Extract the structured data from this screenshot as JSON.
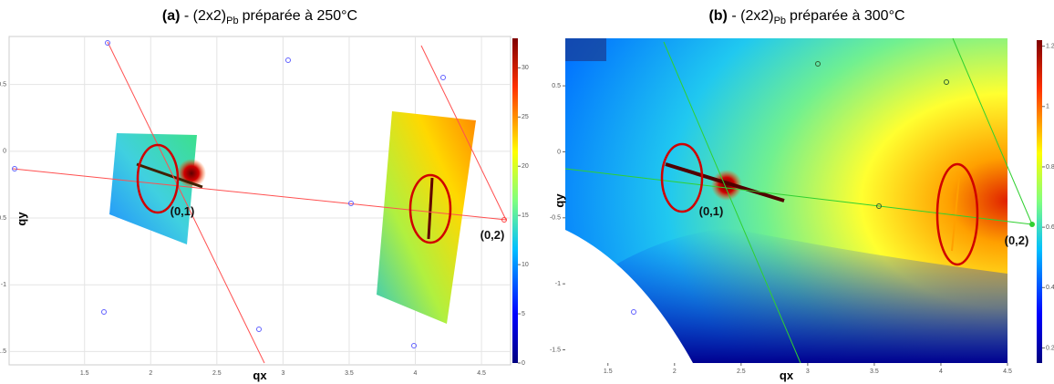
{
  "chart_data": [
    {
      "type": "heatmap",
      "panel_label": "(a)",
      "title": "- (2x2)",
      "title_sub": "Pb",
      "title_rest": "préparée à 250°C",
      "x_label": "qx",
      "y_label": "qy",
      "xlim": [
        0.93,
        4.72
      ],
      "xticks": [
        1.5,
        2,
        2.5,
        3,
        3.5,
        4,
        4.5
      ],
      "ylim": [
        -1.6,
        0.86
      ],
      "yticks": [
        0.5,
        0,
        -0.5,
        -1,
        -1.5
      ],
      "colorbar_lim": [
        0,
        33
      ],
      "colorbar_ticks": [
        0,
        5,
        10,
        15,
        20,
        25,
        30
      ],
      "annotations": [
        "(0,1)",
        "(0,2)"
      ],
      "grid": true
    },
    {
      "type": "heatmap",
      "panel_label": "(b)",
      "title": "- (2x2)",
      "title_sub": "Pb",
      "title_rest": "préparée à 300°C",
      "x_label": "qx",
      "y_label": "qy",
      "xlim": [
        1.18,
        4.5
      ],
      "xticks": [
        1.5,
        2,
        2.5,
        3,
        3.5,
        4,
        4.5
      ],
      "ylim": [
        -1.6,
        0.86
      ],
      "yticks": [
        0.5,
        0,
        -0.5,
        -1,
        -1.5
      ],
      "colorbar_lim": [
        0.15,
        1.22
      ],
      "colorbar_ticks": [
        0.2,
        0.4,
        0.6,
        0.8,
        1,
        1.2
      ],
      "annotations": [
        "(0,1)",
        "(0,2)"
      ],
      "grid": false
    }
  ]
}
